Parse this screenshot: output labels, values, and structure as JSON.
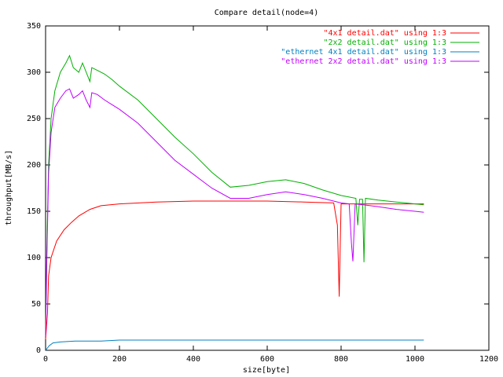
{
  "chart_data": {
    "type": "line",
    "title": "Compare detail(node=4)",
    "xlabel": "size[byte]",
    "ylabel": "throughput[MB/s]",
    "xlim": [
      0,
      1200
    ],
    "ylim": [
      0,
      350
    ],
    "xticks": [
      0,
      200,
      400,
      600,
      800,
      1000,
      1200
    ],
    "yticks": [
      0,
      50,
      100,
      150,
      200,
      250,
      300,
      350
    ],
    "grid": false,
    "legend_position": "top-right",
    "series": [
      {
        "name": "\"4x1 detail.dat\" using 1:3",
        "color": "#ff0000",
        "points": [
          [
            0,
            12
          ],
          [
            5,
            40
          ],
          [
            8,
            80
          ],
          [
            15,
            100
          ],
          [
            30,
            118
          ],
          [
            50,
            130
          ],
          [
            70,
            138
          ],
          [
            90,
            145
          ],
          [
            120,
            152
          ],
          [
            150,
            156
          ],
          [
            200,
            158
          ],
          [
            300,
            160
          ],
          [
            400,
            161
          ],
          [
            500,
            161
          ],
          [
            600,
            161
          ],
          [
            700,
            160
          ],
          [
            780,
            159
          ],
          [
            790,
            135
          ],
          [
            795,
            58
          ],
          [
            800,
            158
          ],
          [
            850,
            158
          ],
          [
            900,
            158
          ],
          [
            950,
            158
          ],
          [
            1000,
            158
          ],
          [
            1024,
            158
          ]
        ]
      },
      {
        "name": "\"2x2 detail.dat\" using 1:3",
        "color": "#00b000",
        "points": [
          [
            0,
            18
          ],
          [
            3,
            100
          ],
          [
            8,
            200
          ],
          [
            15,
            250
          ],
          [
            25,
            280
          ],
          [
            40,
            300
          ],
          [
            55,
            310
          ],
          [
            65,
            318
          ],
          [
            75,
            305
          ],
          [
            90,
            300
          ],
          [
            100,
            310
          ],
          [
            110,
            300
          ],
          [
            120,
            290
          ],
          [
            125,
            305
          ],
          [
            140,
            302
          ],
          [
            160,
            298
          ],
          [
            180,
            292
          ],
          [
            200,
            285
          ],
          [
            250,
            270
          ],
          [
            300,
            250
          ],
          [
            350,
            230
          ],
          [
            400,
            212
          ],
          [
            450,
            192
          ],
          [
            500,
            176
          ],
          [
            550,
            178
          ],
          [
            600,
            182
          ],
          [
            650,
            184
          ],
          [
            700,
            180
          ],
          [
            750,
            173
          ],
          [
            800,
            167
          ],
          [
            840,
            164
          ],
          [
            845,
            135
          ],
          [
            850,
            163
          ],
          [
            858,
            163
          ],
          [
            862,
            95
          ],
          [
            866,
            164
          ],
          [
            900,
            162
          ],
          [
            950,
            160
          ],
          [
            1000,
            158
          ],
          [
            1024,
            157
          ]
        ]
      },
      {
        "name": "\"ethernet 4x1 detail.dat\" using 1:3",
        "color": "#0080c0",
        "points": [
          [
            0,
            0
          ],
          [
            10,
            5
          ],
          [
            20,
            8
          ],
          [
            40,
            9
          ],
          [
            80,
            10
          ],
          [
            150,
            10
          ],
          [
            200,
            11
          ],
          [
            400,
            11
          ],
          [
            600,
            11
          ],
          [
            800,
            11
          ],
          [
            1024,
            11
          ]
        ]
      },
      {
        "name": "\"ethernet 2x2 detail.dat\" using 1:3",
        "color": "#c000ff",
        "points": [
          [
            0,
            15
          ],
          [
            3,
            90
          ],
          [
            8,
            190
          ],
          [
            15,
            235
          ],
          [
            25,
            262
          ],
          [
            40,
            272
          ],
          [
            55,
            280
          ],
          [
            65,
            282
          ],
          [
            75,
            272
          ],
          [
            90,
            276
          ],
          [
            100,
            280
          ],
          [
            110,
            270
          ],
          [
            120,
            262
          ],
          [
            125,
            278
          ],
          [
            140,
            276
          ],
          [
            160,
            270
          ],
          [
            180,
            265
          ],
          [
            200,
            260
          ],
          [
            250,
            245
          ],
          [
            300,
            225
          ],
          [
            350,
            205
          ],
          [
            400,
            190
          ],
          [
            450,
            175
          ],
          [
            500,
            164
          ],
          [
            550,
            164
          ],
          [
            600,
            168
          ],
          [
            650,
            171
          ],
          [
            700,
            168
          ],
          [
            750,
            164
          ],
          [
            800,
            159
          ],
          [
            822,
            158
          ],
          [
            828,
            115
          ],
          [
            832,
            96
          ],
          [
            838,
            158
          ],
          [
            860,
            157
          ],
          [
            900,
            155
          ],
          [
            950,
            152
          ],
          [
            1000,
            150
          ],
          [
            1024,
            149
          ]
        ]
      }
    ]
  }
}
